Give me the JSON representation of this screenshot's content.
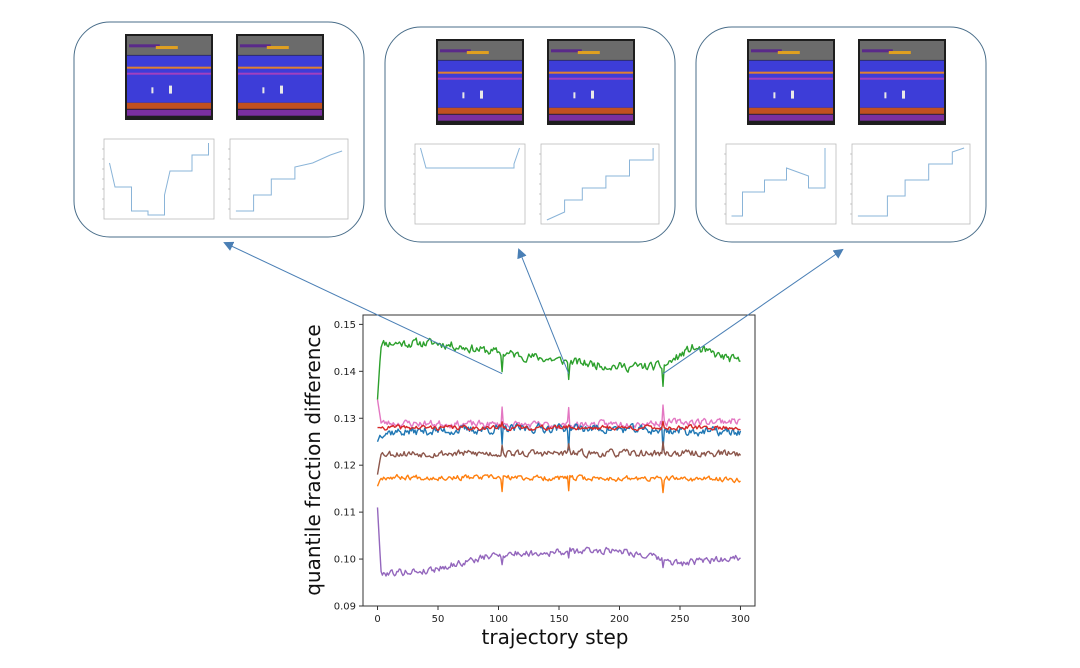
{
  "chart_data": {
    "type": "line",
    "title": "",
    "xlabel": "trajectory step",
    "ylabel": "quantile fraction difference",
    "xlim": [
      -12,
      312
    ],
    "ylim": [
      0.09,
      0.152
    ],
    "xticks": [
      0,
      50,
      100,
      150,
      200,
      250,
      300
    ],
    "yticks": [
      0.09,
      0.1,
      0.11,
      0.12,
      0.13,
      0.14,
      0.15
    ],
    "ytick_labels": [
      "0.09",
      "0.10",
      "0.11",
      "0.12",
      "0.13",
      "0.14",
      "0.15"
    ],
    "grid": false,
    "highlight_steps": [
      103,
      158,
      236
    ],
    "series": [
      {
        "name": "series-green",
        "color": "#2ca02c",
        "start": 0.134,
        "base": 0.145,
        "amp": 0.0015,
        "seed": 11,
        "trend": [
          [
            0,
            0.146
          ],
          [
            50,
            0.146
          ],
          [
            100,
            0.144
          ],
          [
            160,
            0.142
          ],
          [
            200,
            0.141
          ],
          [
            236,
            0.141
          ],
          [
            260,
            0.145
          ],
          [
            300,
            0.142
          ]
        ]
      },
      {
        "name": "series-pink",
        "color": "#e377c2",
        "start": 0.134,
        "base": 0.1295,
        "amp": 0.0012,
        "seed": 23,
        "trend": [
          [
            0,
            0.129
          ],
          [
            150,
            0.1285
          ],
          [
            300,
            0.1295
          ]
        ]
      },
      {
        "name": "series-blue",
        "color": "#1f77b4",
        "start": 0.125,
        "base": 0.1275,
        "amp": 0.0015,
        "seed": 37,
        "trend": [
          [
            0,
            0.127
          ],
          [
            150,
            0.128
          ],
          [
            300,
            0.127
          ]
        ]
      },
      {
        "name": "series-red",
        "color": "#d62728",
        "start": 0.128,
        "base": 0.128,
        "amp": 0.0008,
        "seed": 41,
        "trend": [
          [
            0,
            0.128
          ],
          [
            300,
            0.128
          ]
        ]
      },
      {
        "name": "series-brown",
        "color": "#8c564b",
        "start": 0.118,
        "base": 0.1225,
        "amp": 0.0012,
        "seed": 53,
        "trend": [
          [
            0,
            0.1225
          ],
          [
            150,
            0.1225
          ],
          [
            300,
            0.1225
          ]
        ]
      },
      {
        "name": "series-orange",
        "color": "#ff7f0e",
        "start": 0.1155,
        "base": 0.1175,
        "amp": 0.0009,
        "seed": 67,
        "trend": [
          [
            0,
            0.1175
          ],
          [
            300,
            0.117
          ]
        ]
      },
      {
        "name": "series-purple",
        "color": "#9467bd",
        "start": 0.111,
        "base": 0.098,
        "amp": 0.0012,
        "seed": 79,
        "trend": [
          [
            0,
            0.097
          ],
          [
            40,
            0.0975
          ],
          [
            100,
            0.101
          ],
          [
            150,
            0.1015
          ],
          [
            200,
            0.102
          ],
          [
            250,
            0.099
          ],
          [
            300,
            0.1005
          ]
        ]
      }
    ]
  },
  "panels": [
    {
      "label": "panel-left",
      "step": 103
    },
    {
      "label": "panel-middle",
      "step": 158
    },
    {
      "label": "panel-right",
      "step": 236
    }
  ]
}
